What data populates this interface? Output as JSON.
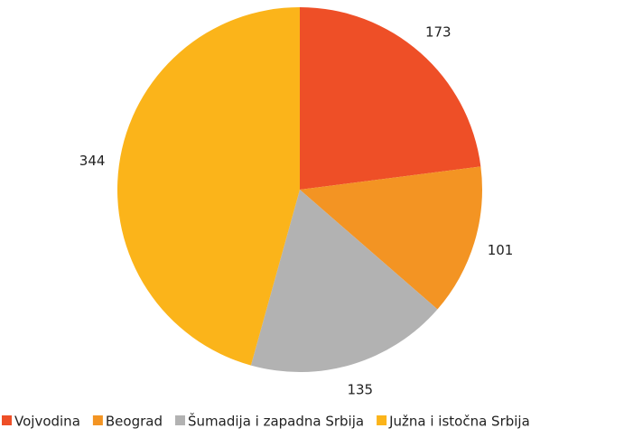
{
  "chart_data": {
    "type": "pie",
    "categories": [
      "Vojvodina",
      "Beograd",
      "Šumadija i zapadna Srbija",
      "Južna i istočna Srbija"
    ],
    "values": [
      173,
      101,
      135,
      344
    ],
    "colors": [
      "#ee4f27",
      "#f39423",
      "#b2b2b2",
      "#fbb41a"
    ]
  }
}
